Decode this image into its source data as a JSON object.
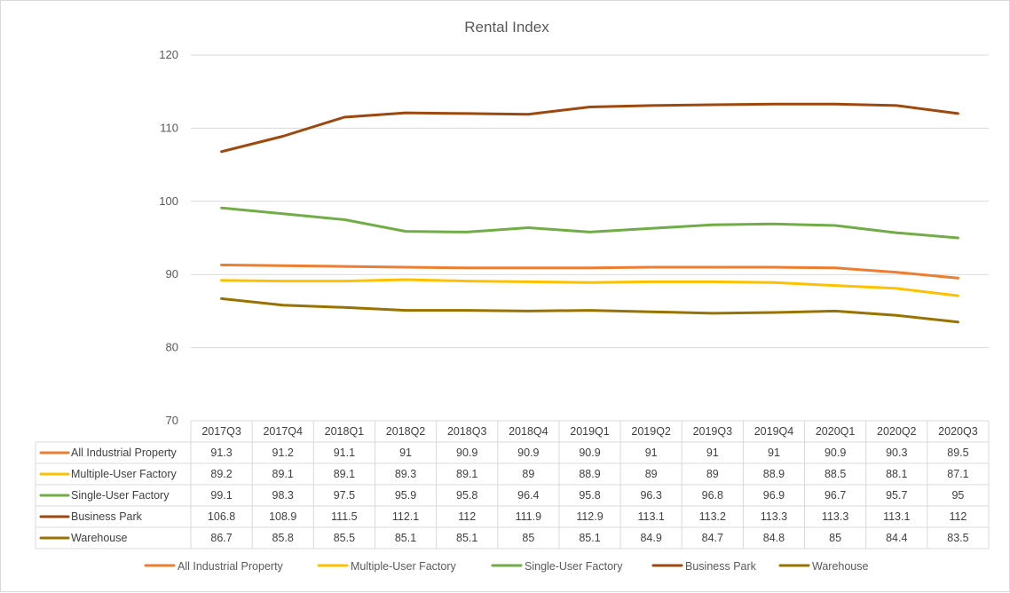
{
  "chart_data": {
    "type": "line",
    "title": "Rental Index",
    "xlabel": "",
    "ylabel": "",
    "ylim": [
      70,
      120
    ],
    "yticks": [
      70,
      80,
      90,
      100,
      110,
      120
    ],
    "categories": [
      "2017Q3",
      "2017Q4",
      "2018Q1",
      "2018Q2",
      "2018Q3",
      "2018Q4",
      "2019Q1",
      "2019Q2",
      "2019Q3",
      "2019Q4",
      "2020Q1",
      "2020Q2",
      "2020Q3"
    ],
    "grid": true,
    "legend_position": "bottom",
    "data_table": true,
    "series": [
      {
        "name": "All Industrial Property",
        "color": "#ED7D31",
        "values": [
          91.3,
          91.2,
          91.1,
          91,
          90.9,
          90.9,
          90.9,
          91,
          91,
          91,
          90.9,
          90.3,
          89.5
        ]
      },
      {
        "name": "Multiple-User Factory",
        "color": "#FFC000",
        "values": [
          89.2,
          89.1,
          89.1,
          89.3,
          89.1,
          89,
          88.9,
          89,
          89,
          88.9,
          88.5,
          88.1,
          87.1
        ]
      },
      {
        "name": "Single-User Factory",
        "color": "#70AD47",
        "values": [
          99.1,
          98.3,
          97.5,
          95.9,
          95.8,
          96.4,
          95.8,
          96.3,
          96.8,
          96.9,
          96.7,
          95.7,
          95
        ]
      },
      {
        "name": "Business Park",
        "color": "#9E480E",
        "values": [
          106.8,
          108.9,
          111.5,
          112.1,
          112,
          111.9,
          112.9,
          113.1,
          113.2,
          113.3,
          113.3,
          113.1,
          112
        ]
      },
      {
        "name": "Warehouse",
        "color": "#997300",
        "values": [
          86.7,
          85.8,
          85.5,
          85.1,
          85.1,
          85,
          85.1,
          84.9,
          84.7,
          84.8,
          85,
          84.4,
          83.5
        ]
      }
    ]
  }
}
